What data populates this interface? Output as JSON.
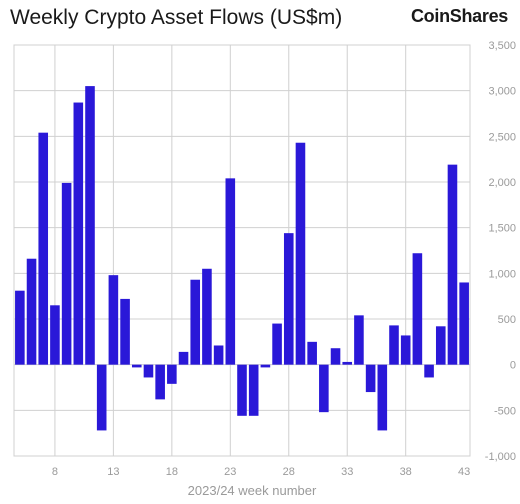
{
  "title": "Weekly Crypto Asset Flows (US$m)",
  "brand": "CoinShares",
  "chart_data": {
    "type": "bar",
    "title": "Weekly Crypto Asset Flows (US$m)",
    "xlabel": "2023/24 week number",
    "ylabel": "",
    "ylim": [
      -1000,
      3500
    ],
    "yticks": [
      3500,
      3000,
      2500,
      2000,
      1500,
      1000,
      500,
      0,
      -500,
      -1000
    ],
    "ytick_labels": [
      "3,500",
      "3,000",
      "2,500",
      "2,000",
      "1,500",
      "1,000",
      "500",
      "0",
      "-500",
      "-1,000"
    ],
    "xtick_labels": [
      "8",
      "13",
      "18",
      "23",
      "28",
      "33",
      "38",
      "43"
    ],
    "categories": [
      "5",
      "6",
      "7",
      "8",
      "9",
      "10",
      "11",
      "12",
      "13",
      "14",
      "15",
      "16",
      "17",
      "18",
      "19",
      "20",
      "21",
      "22",
      "23",
      "24",
      "25",
      "26",
      "27",
      "28",
      "29",
      "30",
      "31",
      "32",
      "33",
      "34",
      "35",
      "36",
      "37",
      "38",
      "39",
      "40",
      "41",
      "42",
      "43"
    ],
    "values": [
      810,
      1160,
      2540,
      650,
      1990,
      2870,
      3050,
      -720,
      980,
      720,
      -30,
      -140,
      -380,
      -210,
      140,
      930,
      1050,
      210,
      2040,
      -560,
      -560,
      -30,
      450,
      1440,
      2430,
      250,
      -520,
      180,
      30,
      540,
      -300,
      -720,
      430,
      320,
      1220,
      -140,
      420,
      2190,
      900
    ],
    "colors": {
      "bar": "#2a18d8",
      "grid": "#d0d0d0",
      "tick_text": "#9a9a9a"
    },
    "grid": true,
    "legend": "none"
  }
}
